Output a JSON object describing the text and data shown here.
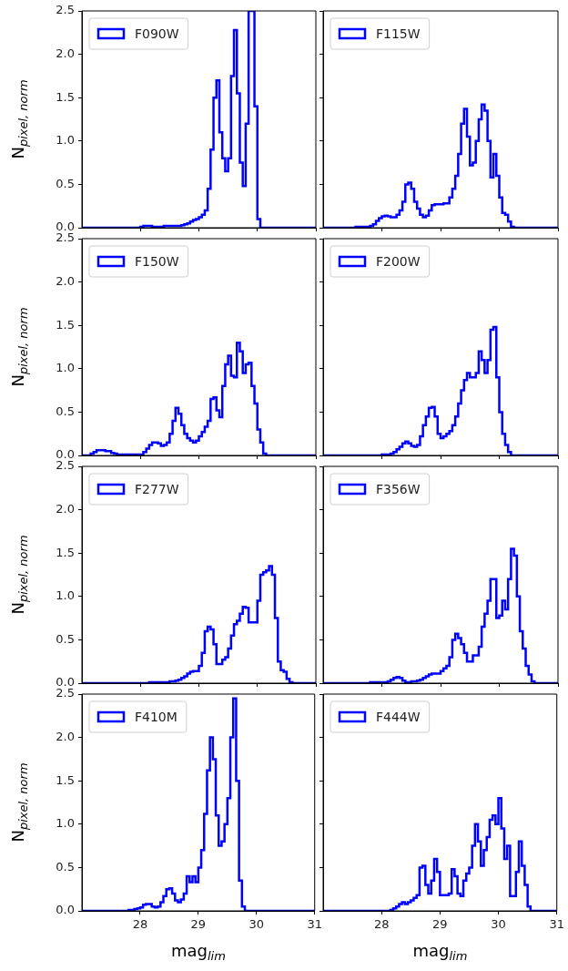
{
  "chart_data": [
    {
      "type": "histogram",
      "ylabel": "N$_{pixel, norm}$",
      "legend": "top left",
      "tick_labels": "y",
      "xlim": [
        27,
        31
      ],
      "ylim": [
        0,
        2.5
      ],
      "xticks": [
        {
          "value": 28,
          "label": null
        },
        {
          "value": 29,
          "label": null
        },
        {
          "value": 30,
          "label": null
        },
        {
          "value": 31,
          "label": null
        }
      ],
      "yticks": [
        {
          "value": 0,
          "label": "0.0"
        },
        {
          "value": 0.5,
          "label": "0.5"
        },
        {
          "value": 1,
          "label": "1.0"
        },
        {
          "value": 1.5,
          "label": "1.5"
        },
        {
          "value": 2,
          "label": "2.0"
        },
        {
          "value": 2.5,
          "label": "2.5"
        }
      ],
      "bins": [
        27,
        28,
        28.05,
        28.1,
        28.15,
        28.2,
        28.25,
        28.3,
        28.35,
        28.4,
        28.45,
        28.5,
        28.55,
        28.6,
        28.65,
        28.7,
        28.75,
        28.8,
        28.85,
        28.9,
        28.95,
        29,
        29.05,
        29.1,
        29.15,
        29.2,
        29.25,
        29.3,
        29.35,
        29.4,
        29.45,
        29.5,
        29.55,
        29.6,
        29.65,
        29.7,
        29.75,
        29.8,
        29.85,
        29.9,
        29.95,
        30,
        30.05,
        31
      ],
      "series": [
        {
          "name": "F090W",
          "color": "#0000ff",
          "values": [
            0,
            0.01,
            0.02,
            0.02,
            0.02,
            0.01,
            0.01,
            0.01,
            0.01,
            0.02,
            0.02,
            0.02,
            0.02,
            0.02,
            0.02,
            0.03,
            0.04,
            0.05,
            0.07,
            0.09,
            0.1,
            0.12,
            0.15,
            0.2,
            0.45,
            0.9,
            1.5,
            1.7,
            1.1,
            0.8,
            0.65,
            0.8,
            1.75,
            2.28,
            1.55,
            0.75,
            0.48,
            1.2,
            2.5,
            2.5,
            1.4,
            0.1,
            0
          ]
        }
      ]
    },
    {
      "type": "histogram",
      "legend": "top left",
      "tick_labels": false,
      "xlim": [
        27,
        31
      ],
      "ylim": [
        0,
        2.5
      ],
      "xticks": [
        {
          "value": 28,
          "label": null
        },
        {
          "value": 29,
          "label": null
        },
        {
          "value": 30,
          "label": null
        },
        {
          "value": 31,
          "label": null
        }
      ],
      "yticks": [
        {
          "value": 0,
          "label": null
        },
        {
          "value": 0.5,
          "label": null
        },
        {
          "value": 1,
          "label": null
        },
        {
          "value": 1.5,
          "label": null
        },
        {
          "value": 2,
          "label": null
        },
        {
          "value": 2.5,
          "label": null
        }
      ],
      "bins": [
        27,
        27.55,
        27.6,
        27.65,
        27.7,
        27.75,
        27.8,
        27.85,
        27.9,
        27.95,
        28,
        28.05,
        28.1,
        28.15,
        28.2,
        28.25,
        28.3,
        28.35,
        28.4,
        28.45,
        28.5,
        28.55,
        28.6,
        28.65,
        28.7,
        28.75,
        28.8,
        28.85,
        28.9,
        28.95,
        29,
        29.05,
        29.1,
        29.15,
        29.2,
        29.25,
        29.3,
        29.35,
        29.4,
        29.45,
        29.5,
        29.55,
        29.6,
        29.65,
        29.7,
        29.75,
        29.8,
        29.85,
        29.9,
        29.95,
        30,
        30.05,
        30.1,
        30.15,
        30.2,
        30.25,
        31
      ],
      "series": [
        {
          "name": "F115W",
          "color": "#0000ff",
          "values": [
            0,
            0.01,
            0.01,
            0.01,
            0.01,
            0.01,
            0.02,
            0.04,
            0.08,
            0.11,
            0.13,
            0.14,
            0.13,
            0.12,
            0.12,
            0.15,
            0.2,
            0.3,
            0.5,
            0.52,
            0.45,
            0.3,
            0.22,
            0.15,
            0.12,
            0.14,
            0.2,
            0.26,
            0.27,
            0.27,
            0.27,
            0.28,
            0.28,
            0.35,
            0.45,
            0.6,
            0.85,
            1.2,
            1.37,
            1.05,
            0.72,
            0.75,
            1.0,
            1.25,
            1.42,
            1.35,
            1.0,
            0.58,
            0.85,
            0.6,
            0.35,
            0.17,
            0.15,
            0.07,
            0.01,
            0
          ]
        }
      ]
    },
    {
      "type": "histogram",
      "ylabel": "N$_{pixel, norm}$",
      "legend": "top left",
      "tick_labels": "y",
      "xlim": [
        27,
        31
      ],
      "ylim": [
        0,
        2.5
      ],
      "xticks": [
        {
          "value": 28,
          "label": null
        },
        {
          "value": 29,
          "label": null
        },
        {
          "value": 30,
          "label": null
        },
        {
          "value": 31,
          "label": null
        }
      ],
      "yticks": [
        {
          "value": 0,
          "label": "0.0"
        },
        {
          "value": 0.5,
          "label": "0.5"
        },
        {
          "value": 1,
          "label": "1.0"
        },
        {
          "value": 1.5,
          "label": "1.5"
        },
        {
          "value": 2,
          "label": "2.0"
        },
        {
          "value": 2.5,
          "label": "2.5"
        }
      ],
      "bins": [
        27,
        27.15,
        27.2,
        27.25,
        27.3,
        27.35,
        27.4,
        27.45,
        27.5,
        27.55,
        27.6,
        27.65,
        27.7,
        27.75,
        27.8,
        27.85,
        27.9,
        27.95,
        28,
        28.05,
        28.1,
        28.15,
        28.2,
        28.25,
        28.3,
        28.35,
        28.4,
        28.45,
        28.5,
        28.55,
        28.6,
        28.65,
        28.7,
        28.75,
        28.8,
        28.85,
        28.9,
        28.95,
        29,
        29.05,
        29.1,
        29.15,
        29.2,
        29.25,
        29.3,
        29.35,
        29.4,
        29.45,
        29.5,
        29.55,
        29.6,
        29.65,
        29.7,
        29.75,
        29.8,
        29.85,
        29.9,
        29.95,
        30,
        30.05,
        30.1,
        30.15,
        31
      ],
      "series": [
        {
          "name": "F150W",
          "color": "#0000ff",
          "values": [
            0,
            0.02,
            0.04,
            0.06,
            0.06,
            0.06,
            0.05,
            0.05,
            0.03,
            0.02,
            0.01,
            0.01,
            0.01,
            0.01,
            0.01,
            0.01,
            0.01,
            0.01,
            0.01,
            0.04,
            0.08,
            0.12,
            0.15,
            0.15,
            0.14,
            0.11,
            0.12,
            0.15,
            0.25,
            0.4,
            0.55,
            0.48,
            0.35,
            0.25,
            0.2,
            0.17,
            0.15,
            0.17,
            0.22,
            0.27,
            0.33,
            0.4,
            0.65,
            0.67,
            0.52,
            0.44,
            0.8,
            1.05,
            1.15,
            0.92,
            0.9,
            1.3,
            1.2,
            0.95,
            1.05,
            1.07,
            0.8,
            0.6,
            0.3,
            0.15,
            0.02,
            0
          ]
        }
      ]
    },
    {
      "type": "histogram",
      "legend": "top left",
      "tick_labels": false,
      "xlim": [
        27,
        31
      ],
      "ylim": [
        0,
        2.5
      ],
      "xticks": [
        {
          "value": 28,
          "label": null
        },
        {
          "value": 29,
          "label": null
        },
        {
          "value": 30,
          "label": null
        },
        {
          "value": 31,
          "label": null
        }
      ],
      "yticks": [
        {
          "value": 0,
          "label": null
        },
        {
          "value": 0.5,
          "label": null
        },
        {
          "value": 1,
          "label": null
        },
        {
          "value": 1.5,
          "label": null
        },
        {
          "value": 2,
          "label": null
        },
        {
          "value": 2.5,
          "label": null
        }
      ],
      "bins": [
        27,
        28,
        28.05,
        28.1,
        28.15,
        28.2,
        28.25,
        28.3,
        28.35,
        28.4,
        28.45,
        28.5,
        28.55,
        28.6,
        28.65,
        28.7,
        28.75,
        28.8,
        28.85,
        28.9,
        28.95,
        29,
        29.05,
        29.1,
        29.15,
        29.2,
        29.25,
        29.3,
        29.35,
        29.4,
        29.45,
        29.5,
        29.55,
        29.6,
        29.65,
        29.7,
        29.75,
        29.8,
        29.85,
        29.9,
        29.95,
        30,
        30.05,
        30.1,
        30.15,
        30.2,
        31
      ],
      "series": [
        {
          "name": "F200W",
          "color": "#0000ff",
          "values": [
            0,
            0.01,
            0.01,
            0.01,
            0.02,
            0.04,
            0.07,
            0.1,
            0.14,
            0.16,
            0.14,
            0.11,
            0.1,
            0.12,
            0.22,
            0.35,
            0.45,
            0.55,
            0.56,
            0.45,
            0.25,
            0.2,
            0.22,
            0.25,
            0.28,
            0.35,
            0.45,
            0.6,
            0.75,
            0.87,
            0.95,
            0.9,
            0.9,
            0.95,
            1.2,
            1.1,
            0.95,
            1.1,
            1.45,
            1.48,
            0.9,
            0.5,
            0.25,
            0.12,
            0.04,
            0
          ]
        }
      ]
    },
    {
      "type": "histogram",
      "ylabel": "N$_{pixel, norm}$",
      "legend": "top left",
      "tick_labels": "y",
      "xlim": [
        27,
        31
      ],
      "ylim": [
        0,
        2.5
      ],
      "xticks": [
        {
          "value": 28,
          "label": null
        },
        {
          "value": 29,
          "label": null
        },
        {
          "value": 30,
          "label": null
        },
        {
          "value": 31,
          "label": null
        }
      ],
      "yticks": [
        {
          "value": 0,
          "label": "0.0"
        },
        {
          "value": 0.5,
          "label": "0.5"
        },
        {
          "value": 1,
          "label": "1.0"
        },
        {
          "value": 1.5,
          "label": "1.5"
        },
        {
          "value": 2,
          "label": "2.0"
        },
        {
          "value": 2.5,
          "label": "2.5"
        }
      ],
      "bins": [
        27,
        28.15,
        28.2,
        28.25,
        28.3,
        28.35,
        28.4,
        28.45,
        28.5,
        28.55,
        28.6,
        28.65,
        28.7,
        28.75,
        28.8,
        28.85,
        28.9,
        28.95,
        29,
        29.05,
        29.1,
        29.15,
        29.2,
        29.25,
        29.3,
        29.35,
        29.4,
        29.45,
        29.5,
        29.55,
        29.6,
        29.65,
        29.7,
        29.75,
        29.8,
        29.85,
        29.9,
        29.95,
        30,
        30.05,
        30.1,
        30.15,
        30.2,
        30.25,
        30.3,
        30.35,
        30.4,
        30.45,
        30.5,
        30.55,
        30.6,
        31
      ],
      "series": [
        {
          "name": "F277W",
          "color": "#0000ff",
          "values": [
            0,
            0.01,
            0.01,
            0.01,
            0.01,
            0.01,
            0.01,
            0.01,
            0.02,
            0.02,
            0.03,
            0.04,
            0.06,
            0.08,
            0.11,
            0.13,
            0.14,
            0.14,
            0.2,
            0.35,
            0.6,
            0.65,
            0.62,
            0.45,
            0.22,
            0.22,
            0.27,
            0.3,
            0.4,
            0.55,
            0.68,
            0.72,
            0.8,
            0.88,
            0.87,
            0.7,
            0.7,
            0.7,
            0.95,
            1.25,
            1.28,
            1.3,
            1.35,
            1.25,
            0.75,
            0.25,
            0.15,
            0.13,
            0.05,
            0.01,
            0
          ]
        }
      ]
    },
    {
      "type": "histogram",
      "legend": "top left",
      "tick_labels": false,
      "xlim": [
        27,
        31
      ],
      "ylim": [
        0,
        2.5
      ],
      "xticks": [
        {
          "value": 28,
          "label": null
        },
        {
          "value": 29,
          "label": null
        },
        {
          "value": 30,
          "label": null
        },
        {
          "value": 31,
          "label": null
        }
      ],
      "yticks": [
        {
          "value": 0,
          "label": null
        },
        {
          "value": 0.5,
          "label": null
        },
        {
          "value": 1,
          "label": null
        },
        {
          "value": 1.5,
          "label": null
        },
        {
          "value": 2,
          "label": null
        },
        {
          "value": 2.5,
          "label": null
        }
      ],
      "bins": [
        27,
        27.8,
        27.85,
        27.9,
        27.95,
        28,
        28.05,
        28.1,
        28.15,
        28.2,
        28.25,
        28.3,
        28.35,
        28.4,
        28.45,
        28.5,
        28.55,
        28.6,
        28.65,
        28.7,
        28.75,
        28.8,
        28.85,
        28.9,
        28.95,
        29,
        29.05,
        29.1,
        29.15,
        29.2,
        29.25,
        29.3,
        29.35,
        29.4,
        29.45,
        29.5,
        29.55,
        29.6,
        29.65,
        29.7,
        29.75,
        29.8,
        29.85,
        29.9,
        29.95,
        30,
        30.05,
        30.1,
        30.15,
        30.2,
        30.25,
        30.3,
        30.35,
        30.4,
        30.45,
        30.5,
        30.55,
        30.6,
        31
      ],
      "series": [
        {
          "name": "F356W",
          "color": "#0000ff",
          "values": [
            0,
            0.01,
            0.01,
            0.01,
            0.01,
            0.01,
            0.01,
            0.02,
            0.04,
            0.06,
            0.07,
            0.06,
            0.03,
            0.01,
            0.01,
            0.02,
            0.02,
            0.03,
            0.04,
            0.06,
            0.08,
            0.1,
            0.11,
            0.11,
            0.11,
            0.14,
            0.17,
            0.2,
            0.3,
            0.5,
            0.57,
            0.52,
            0.45,
            0.35,
            0.25,
            0.25,
            0.32,
            0.32,
            0.42,
            0.65,
            0.8,
            0.95,
            1.2,
            1.2,
            0.75,
            0.78,
            0.95,
            0.85,
            1.2,
            1.55,
            1.47,
            1.0,
            0.6,
            0.4,
            0.2,
            0.1,
            0.02,
            0
          ]
        }
      ]
    },
    {
      "type": "histogram",
      "ylabel": "N$_{pixel, norm}$",
      "xlabel": "mag$_{lim}$",
      "legend": "top left",
      "xlim": [
        27,
        31
      ],
      "ylim": [
        0,
        2.5
      ],
      "xticks": [
        28,
        29,
        30,
        31
      ],
      "yticks": [
        {
          "value": 0,
          "label": "0.0"
        },
        {
          "value": 0.5,
          "label": "0.5"
        },
        {
          "value": 1,
          "label": "1.0"
        },
        {
          "value": 1.5,
          "label": "1.5"
        },
        {
          "value": 2,
          "label": "2.0"
        },
        {
          "value": 2.5,
          "label": "2.5"
        }
      ],
      "bins": [
        27,
        27.8,
        27.85,
        27.9,
        27.95,
        28,
        28.05,
        28.1,
        28.15,
        28.2,
        28.25,
        28.3,
        28.35,
        28.4,
        28.45,
        28.5,
        28.55,
        28.6,
        28.65,
        28.7,
        28.75,
        28.8,
        28.85,
        28.9,
        28.95,
        29,
        29.05,
        29.1,
        29.15,
        29.2,
        29.25,
        29.3,
        29.35,
        29.4,
        29.45,
        29.5,
        29.55,
        29.6,
        29.65,
        29.7,
        29.75,
        29.8,
        31
      ],
      "series": [
        {
          "name": "F410M",
          "color": "#0000ff",
          "values": [
            0,
            0.01,
            0.01,
            0.02,
            0.03,
            0.04,
            0.07,
            0.08,
            0.08,
            0.05,
            0.04,
            0.05,
            0.1,
            0.17,
            0.25,
            0.26,
            0.2,
            0.12,
            0.1,
            0.13,
            0.2,
            0.4,
            0.33,
            0.4,
            0.33,
            0.5,
            0.7,
            1.12,
            1.62,
            2.0,
            1.75,
            1.1,
            0.75,
            0.8,
            1.0,
            1.3,
            2.0,
            2.45,
            1.5,
            0.35,
            0.05,
            0
          ]
        }
      ]
    },
    {
      "type": "histogram",
      "xlabel": "mag$_{lim}$",
      "legend": "top left",
      "tick_labels": "x",
      "xlim": [
        27,
        31
      ],
      "ylim": [
        0,
        2.5
      ],
      "xticks": [
        28,
        29,
        30,
        31
      ],
      "yticks": [
        {
          "value": 0,
          "label": null
        },
        {
          "value": 0.5,
          "label": null
        },
        {
          "value": 1,
          "label": null
        },
        {
          "value": 1.5,
          "label": null
        },
        {
          "value": 2,
          "label": null
        },
        {
          "value": 2.5,
          "label": null
        }
      ],
      "bins": [
        27,
        28.15,
        28.2,
        28.25,
        28.3,
        28.35,
        28.4,
        28.45,
        28.5,
        28.55,
        28.6,
        28.65,
        28.7,
        28.75,
        28.8,
        28.85,
        28.9,
        28.95,
        29,
        29.05,
        29.1,
        29.15,
        29.2,
        29.25,
        29.3,
        29.35,
        29.4,
        29.45,
        29.5,
        29.55,
        29.6,
        29.65,
        29.7,
        29.75,
        29.8,
        29.85,
        29.9,
        29.95,
        30,
        30.05,
        30.1,
        30.15,
        30.2,
        30.25,
        30.3,
        30.35,
        30.4,
        30.45,
        30.5,
        30.55,
        31
      ],
      "series": [
        {
          "name": "F444W",
          "color": "#0000ff",
          "values": [
            0,
            0.01,
            0.03,
            0.05,
            0.08,
            0.1,
            0.08,
            0.1,
            0.12,
            0.15,
            0.18,
            0.5,
            0.52,
            0.3,
            0.2,
            0.35,
            0.6,
            0.45,
            0.18,
            0.18,
            0.18,
            0.2,
            0.48,
            0.4,
            0.2,
            0.17,
            0.35,
            0.43,
            0.5,
            0.75,
            1.0,
            0.8,
            0.52,
            0.7,
            0.85,
            1.05,
            1.1,
            1.0,
            1.3,
            0.95,
            0.6,
            0.75,
            0.17,
            0.17,
            0.45,
            0.8,
            0.52,
            0.3,
            0.05,
            0
          ]
        }
      ]
    }
  ]
}
